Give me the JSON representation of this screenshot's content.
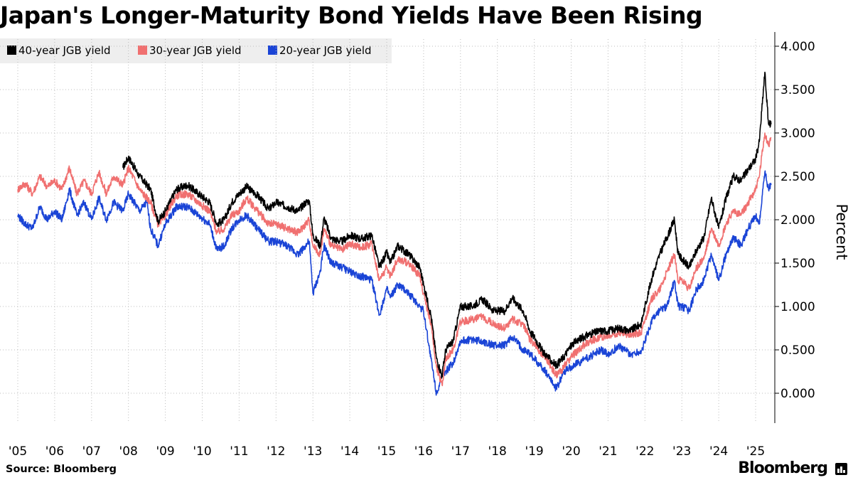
{
  "title": "Japan's Longer-Maturity Bond Yields Have Been Rising",
  "source": "Source: Bloomberg",
  "brand": "Bloomberg",
  "colors": {
    "s40": "#000000",
    "s30": "#f07070",
    "s20": "#1a44d6",
    "grid": "#bdbdbd",
    "legend_bg": "#eeeeee"
  },
  "chart_data": {
    "type": "line",
    "title": "Japan's Longer-Maturity Bond Yields Have Been Rising",
    "xlabel": "",
    "ylabel": "Percent",
    "ylim": [
      -0.3,
      4.1
    ],
    "xlim": [
      2005.0,
      2025.4
    ],
    "y_ticks": [
      0,
      0.5,
      1,
      1.5,
      2,
      2.5,
      3,
      3.5,
      4
    ],
    "y_tick_labels": [
      "0.000",
      "0.500",
      "1.000",
      "1.500",
      "2.000",
      "2.500",
      "3.000",
      "3.500",
      "4.000"
    ],
    "x_ticks": [
      2005,
      2006,
      2007,
      2008,
      2009,
      2010,
      2011,
      2012,
      2013,
      2014,
      2015,
      2016,
      2017,
      2018,
      2019,
      2020,
      2021,
      2022,
      2023,
      2024,
      2025
    ],
    "x_tick_labels": [
      "'05",
      "'06",
      "'07",
      "'08",
      "'09",
      "'10",
      "'11",
      "'12",
      "'13",
      "'14",
      "'15",
      "'16",
      "'17",
      "'18",
      "'19",
      "'20",
      "'21",
      "'22",
      "'23",
      "'24",
      "'25"
    ],
    "grid": true,
    "legend_position": "top-left",
    "series": [
      {
        "name": "40-year JGB yield",
        "color": "#000000",
        "x": [
          2007.85,
          2008.0,
          2008.3,
          2008.6,
          2008.8,
          2009.0,
          2009.3,
          2009.6,
          2009.9,
          2010.2,
          2010.4,
          2010.6,
          2010.8,
          2011.0,
          2011.2,
          2011.5,
          2011.8,
          2012.0,
          2012.3,
          2012.6,
          2012.8,
          2012.9,
          2013.0,
          2013.2,
          2013.3,
          2013.5,
          2013.8,
          2014.0,
          2014.3,
          2014.6,
          2014.8,
          2015.0,
          2015.1,
          2015.3,
          2015.6,
          2015.9,
          2016.0,
          2016.2,
          2016.35,
          2016.5,
          2016.6,
          2016.8,
          2017.0,
          2017.3,
          2017.6,
          2017.9,
          2018.2,
          2018.4,
          2018.7,
          2018.9,
          2019.0,
          2019.2,
          2019.4,
          2019.6,
          2019.8,
          2020.0,
          2020.2,
          2020.5,
          2020.8,
          2021.0,
          2021.3,
          2021.6,
          2021.9,
          2022.0,
          2022.2,
          2022.4,
          2022.6,
          2022.8,
          2022.9,
          2023.0,
          2023.2,
          2023.4,
          2023.6,
          2023.8,
          2024.0,
          2024.2,
          2024.4,
          2024.6,
          2024.8,
          2025.0,
          2025.1,
          2025.25,
          2025.35,
          2025.42
        ],
        "values": [
          2.6,
          2.72,
          2.5,
          2.35,
          1.98,
          2.1,
          2.35,
          2.4,
          2.3,
          2.2,
          1.95,
          2.0,
          2.2,
          2.3,
          2.38,
          2.28,
          2.12,
          2.2,
          2.15,
          2.1,
          2.2,
          2.22,
          1.82,
          1.7,
          2.02,
          1.78,
          1.75,
          1.82,
          1.78,
          1.82,
          1.45,
          1.62,
          1.5,
          1.7,
          1.6,
          1.45,
          1.25,
          0.9,
          0.4,
          0.2,
          0.5,
          0.6,
          1.0,
          1.0,
          1.08,
          0.95,
          0.95,
          1.1,
          0.95,
          0.7,
          0.65,
          0.5,
          0.4,
          0.32,
          0.42,
          0.55,
          0.62,
          0.68,
          0.72,
          0.72,
          0.75,
          0.72,
          0.8,
          1.0,
          1.35,
          1.6,
          1.8,
          2.0,
          1.6,
          1.55,
          1.45,
          1.65,
          1.8,
          2.25,
          1.9,
          2.25,
          2.5,
          2.45,
          2.58,
          2.7,
          2.9,
          3.7,
          3.1,
          3.1
        ]
      },
      {
        "name": "30-year JGB yield",
        "color": "#f07070",
        "x": [
          2005.0,
          2005.2,
          2005.4,
          2005.6,
          2005.8,
          2006.0,
          2006.2,
          2006.4,
          2006.6,
          2006.8,
          2007.0,
          2007.2,
          2007.4,
          2007.6,
          2007.85,
          2008.0,
          2008.3,
          2008.6,
          2008.8,
          2009.0,
          2009.3,
          2009.6,
          2009.9,
          2010.2,
          2010.4,
          2010.6,
          2010.8,
          2011.0,
          2011.2,
          2011.5,
          2011.8,
          2012.0,
          2012.3,
          2012.6,
          2012.8,
          2012.9,
          2013.0,
          2013.2,
          2013.3,
          2013.5,
          2013.8,
          2014.0,
          2014.3,
          2014.6,
          2014.8,
          2015.0,
          2015.1,
          2015.3,
          2015.6,
          2015.9,
          2016.0,
          2016.2,
          2016.35,
          2016.5,
          2016.6,
          2016.8,
          2017.0,
          2017.3,
          2017.6,
          2017.9,
          2018.2,
          2018.4,
          2018.7,
          2018.9,
          2019.0,
          2019.2,
          2019.4,
          2019.6,
          2019.8,
          2020.0,
          2020.2,
          2020.5,
          2020.8,
          2021.0,
          2021.3,
          2021.6,
          2021.9,
          2022.0,
          2022.2,
          2022.4,
          2022.6,
          2022.8,
          2022.9,
          2023.0,
          2023.2,
          2023.4,
          2023.6,
          2023.8,
          2024.0,
          2024.2,
          2024.4,
          2024.6,
          2024.8,
          2025.0,
          2025.1,
          2025.25,
          2025.35,
          2025.42
        ],
        "values": [
          2.35,
          2.42,
          2.3,
          2.5,
          2.38,
          2.45,
          2.35,
          2.6,
          2.3,
          2.45,
          2.3,
          2.55,
          2.3,
          2.5,
          2.4,
          2.6,
          2.35,
          2.2,
          1.95,
          2.05,
          2.28,
          2.3,
          2.2,
          2.1,
          1.85,
          1.9,
          2.05,
          2.1,
          2.25,
          2.1,
          1.95,
          1.95,
          1.9,
          1.85,
          1.95,
          2.0,
          1.7,
          1.6,
          1.9,
          1.7,
          1.65,
          1.72,
          1.68,
          1.72,
          1.3,
          1.45,
          1.35,
          1.55,
          1.5,
          1.35,
          1.15,
          0.8,
          0.3,
          0.1,
          0.4,
          0.5,
          0.82,
          0.85,
          0.88,
          0.8,
          0.75,
          0.85,
          0.8,
          0.6,
          0.58,
          0.45,
          0.35,
          0.2,
          0.3,
          0.42,
          0.5,
          0.6,
          0.65,
          0.65,
          0.7,
          0.68,
          0.7,
          0.85,
          1.1,
          1.2,
          1.4,
          1.6,
          1.3,
          1.3,
          1.2,
          1.45,
          1.55,
          1.9,
          1.7,
          1.95,
          2.1,
          2.05,
          2.2,
          2.35,
          2.5,
          3.0,
          2.85,
          2.95
        ]
      },
      {
        "name": "20-year JGB yield",
        "color": "#1a44d6",
        "x": [
          2005.0,
          2005.2,
          2005.4,
          2005.6,
          2005.8,
          2006.0,
          2006.2,
          2006.4,
          2006.6,
          2006.8,
          2007.0,
          2007.2,
          2007.4,
          2007.6,
          2007.85,
          2008.0,
          2008.3,
          2008.5,
          2008.6,
          2008.8,
          2009.0,
          2009.3,
          2009.6,
          2009.9,
          2010.2,
          2010.4,
          2010.6,
          2010.8,
          2011.0,
          2011.2,
          2011.5,
          2011.8,
          2012.0,
          2012.3,
          2012.6,
          2012.8,
          2012.9,
          2013.0,
          2013.2,
          2013.3,
          2013.5,
          2013.8,
          2014.0,
          2014.3,
          2014.6,
          2014.8,
          2015.0,
          2015.1,
          2015.3,
          2015.6,
          2015.9,
          2016.0,
          2016.2,
          2016.35,
          2016.5,
          2016.6,
          2016.8,
          2017.0,
          2017.3,
          2017.6,
          2017.9,
          2018.2,
          2018.4,
          2018.7,
          2018.9,
          2019.0,
          2019.2,
          2019.4,
          2019.6,
          2019.8,
          2020.0,
          2020.2,
          2020.5,
          2020.8,
          2021.0,
          2021.3,
          2021.6,
          2021.9,
          2022.0,
          2022.2,
          2022.4,
          2022.6,
          2022.8,
          2022.9,
          2023.0,
          2023.2,
          2023.4,
          2023.6,
          2023.8,
          2024.0,
          2024.2,
          2024.4,
          2024.6,
          2024.8,
          2025.0,
          2025.1,
          2025.25,
          2025.35,
          2025.42
        ],
        "values": [
          2.05,
          1.95,
          1.9,
          2.15,
          2.0,
          2.1,
          2.0,
          2.35,
          2.05,
          2.2,
          2.0,
          2.25,
          2.0,
          2.2,
          2.1,
          2.3,
          2.1,
          2.2,
          1.9,
          1.7,
          1.95,
          2.15,
          2.15,
          2.05,
          1.95,
          1.65,
          1.7,
          1.9,
          2.0,
          2.05,
          1.9,
          1.75,
          1.75,
          1.7,
          1.6,
          1.7,
          1.75,
          1.15,
          1.4,
          1.7,
          1.5,
          1.45,
          1.4,
          1.35,
          1.3,
          0.9,
          1.2,
          1.1,
          1.25,
          1.15,
          1.0,
          0.95,
          0.4,
          0.0,
          0.2,
          0.25,
          0.35,
          0.6,
          0.62,
          0.6,
          0.55,
          0.55,
          0.65,
          0.5,
          0.45,
          0.4,
          0.3,
          0.2,
          0.05,
          0.25,
          0.3,
          0.35,
          0.42,
          0.5,
          0.45,
          0.55,
          0.45,
          0.48,
          0.6,
          0.85,
          0.95,
          1.0,
          1.3,
          1.0,
          1.0,
          0.95,
          1.2,
          1.3,
          1.6,
          1.3,
          1.6,
          1.8,
          1.7,
          1.9,
          2.05,
          1.95,
          2.55,
          2.35,
          2.4
        ]
      }
    ]
  }
}
